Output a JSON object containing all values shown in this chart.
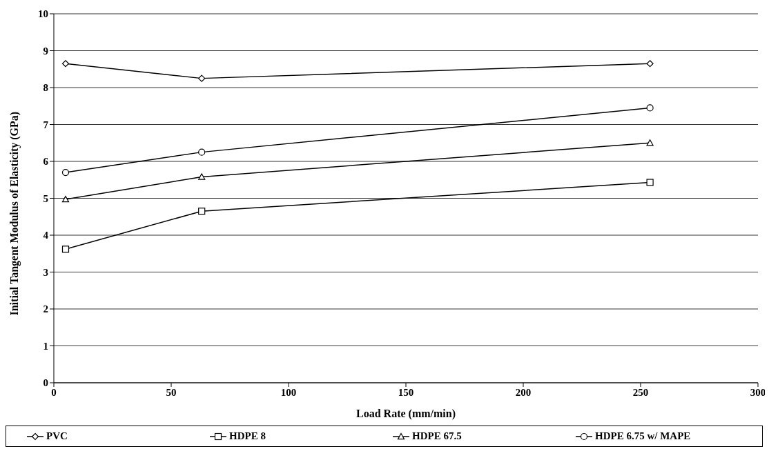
{
  "chart_data": {
    "type": "line",
    "xlabel": "Load Rate (mm/min)",
    "ylabel": "Initial Tangent Modulus of Elasticity (GPa)",
    "x": [
      5,
      63,
      254
    ],
    "series": [
      {
        "name": "PVC",
        "color": "#000000",
        "marker": "diamond",
        "values": [
          8.65,
          8.25,
          8.65
        ]
      },
      {
        "name": "HDPE 8",
        "color": "#000000",
        "marker": "square",
        "values": [
          3.62,
          4.65,
          5.43
        ]
      },
      {
        "name": "HDPE 67.5",
        "color": "#000000",
        "marker": "triangle",
        "values": [
          4.97,
          5.58,
          6.5
        ]
      },
      {
        "name": "HDPE 6.75 w/ MAPE",
        "color": "#000000",
        "marker": "circle",
        "values": [
          5.7,
          6.25,
          7.45
        ]
      }
    ],
    "xlim": [
      0,
      300
    ],
    "xticks": [
      0,
      50,
      100,
      150,
      200,
      250,
      300
    ],
    "ylim": [
      0,
      10
    ],
    "yticks": [
      0,
      1,
      2,
      3,
      4,
      5,
      6,
      7,
      8,
      9,
      10
    ],
    "grid": "y",
    "legend": "bottom",
    "line_style": "solid"
  }
}
